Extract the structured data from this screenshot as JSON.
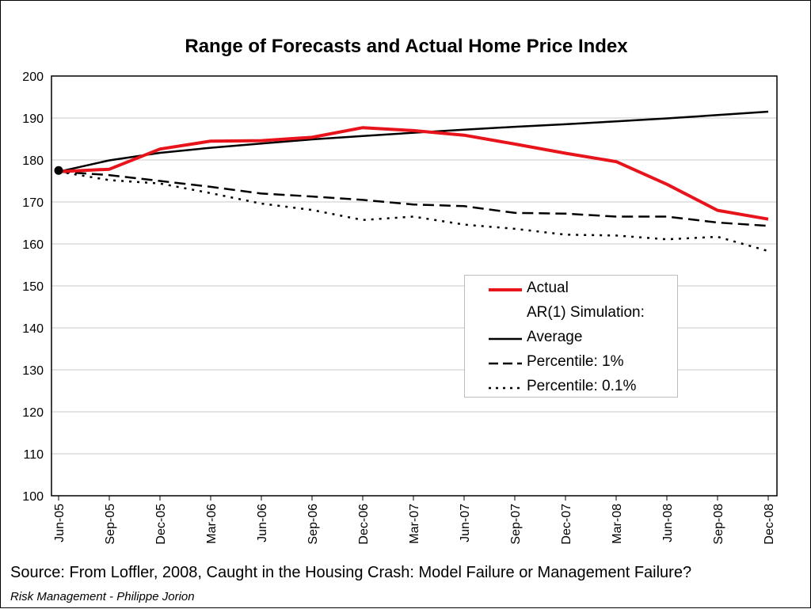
{
  "chart_data": {
    "type": "line",
    "title": "Range of Forecasts and Actual Home Price Index",
    "xlabel": "",
    "ylabel": "",
    "ylim": [
      100,
      200
    ],
    "yticks": [
      100,
      110,
      120,
      130,
      140,
      150,
      160,
      170,
      180,
      190,
      200
    ],
    "categories": [
      "Jun-05",
      "Sep-05",
      "Dec-05",
      "Mar-06",
      "Jun-06",
      "Sep-06",
      "Dec-06",
      "Mar-07",
      "Jun-07",
      "Sep-07",
      "Dec-07",
      "Mar-08",
      "Jun-08",
      "Sep-08",
      "Dec-08"
    ],
    "grid": "horizontal",
    "legend_position": "center-right",
    "series": [
      {
        "name": "Actual",
        "color": "#e8141b",
        "style": "solid",
        "values": [
          177.2,
          177.8,
          182.6,
          184.5,
          184.6,
          185.4,
          187.7,
          187.0,
          185.9,
          183.8,
          181.6,
          179.6,
          174.2,
          168.0,
          165.9
        ]
      },
      {
        "name": "Average",
        "color": "#000000",
        "style": "solid",
        "values": [
          177.2,
          179.9,
          181.7,
          182.9,
          183.9,
          184.9,
          185.7,
          186.5,
          187.2,
          187.9,
          188.5,
          189.2,
          189.9,
          190.7,
          191.5
        ]
      },
      {
        "name": "Percentile: 1%",
        "color": "#000000",
        "style": "dashed",
        "values": [
          177.2,
          176.4,
          175.0,
          173.6,
          172.0,
          171.3,
          170.5,
          169.4,
          169.0,
          167.4,
          167.2,
          166.5,
          166.5,
          165.1,
          164.3
        ]
      },
      {
        "name": "Percentile: 0.1%",
        "color": "#000000",
        "style": "dotted",
        "values": [
          177.2,
          175.2,
          174.4,
          172.1,
          169.6,
          168.1,
          165.7,
          166.5,
          164.6,
          163.6,
          162.2,
          162.0,
          161.1,
          161.7,
          158.3
        ]
      }
    ],
    "start_marker_value": 177.5
  },
  "legend": {
    "items": [
      {
        "label": "Actual",
        "style": "solid",
        "color": "#e8141b"
      },
      {
        "label": "AR(1) Simulation:",
        "style": "none",
        "color": ""
      },
      {
        "label": "Average",
        "style": "solid",
        "color": "#000000"
      },
      {
        "label": "Percentile: 1%",
        "style": "dashed",
        "color": "#000000"
      },
      {
        "label": "Percentile: 0.1%",
        "style": "dotted",
        "color": "#000000"
      }
    ]
  },
  "source": "Source: From Loffler, 2008, Caught in the Housing Crash: Model Failure or Management Failure?",
  "footer": "Risk Management - Philippe Jorion"
}
